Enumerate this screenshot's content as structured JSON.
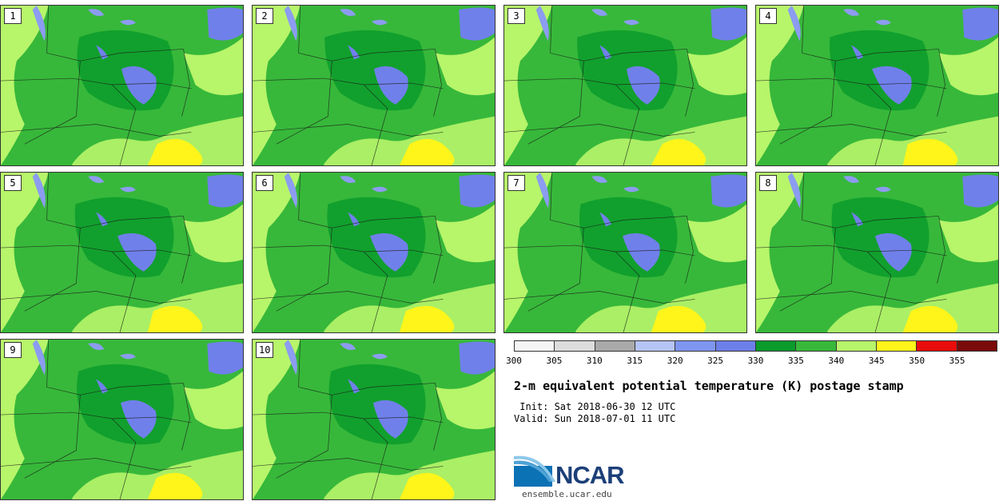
{
  "panels": [
    "1",
    "2",
    "3",
    "4",
    "5",
    "6",
    "7",
    "8",
    "9",
    "10"
  ],
  "colorbar": {
    "ticks": [
      "300",
      "305",
      "310",
      "315",
      "320",
      "325",
      "330",
      "335",
      "340",
      "345",
      "350",
      "355"
    ],
    "colors": [
      "#f5f5f5",
      "#dcdcdc",
      "#a9a9a9",
      "#b5c4f5",
      "#7f96f0",
      "#6c7fe8",
      "#0a9b2c",
      "#37b83a",
      "#b7f56a",
      "#fff51a",
      "#e80c0c",
      "#7b0a0a"
    ]
  },
  "title": "2-m equivalent potential temperature (K) postage stamp",
  "init": " Init: Sat 2018-06-30 12 UTC",
  "valid": "Valid: Sun 2018-07-01 11 UTC",
  "logo": {
    "text": "NCAR",
    "url": "ensemble.ucar.edu"
  },
  "colors": {
    "water": "#7080ea",
    "lake": "#8c9cf0",
    "light_green": "#b7f56a",
    "mid_green": "#37b83a",
    "dark_green": "#0a9b2c",
    "yellow": "#fff51a",
    "ncar_blue": "#1c3f78"
  }
}
